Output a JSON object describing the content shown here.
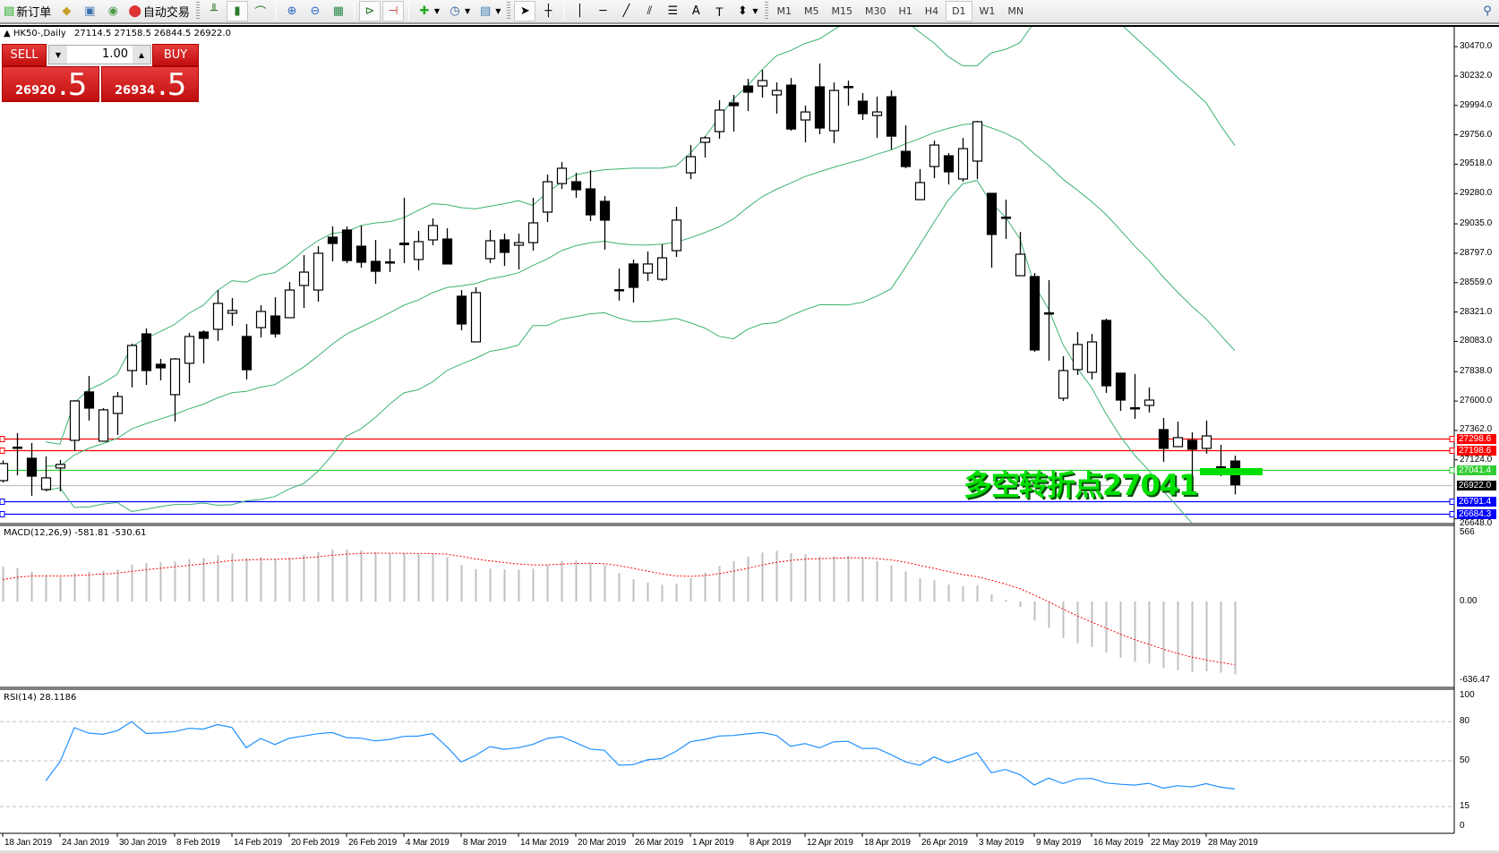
{
  "toolbar": {
    "new_order_label": "新订单",
    "auto_trading_label": "自动交易",
    "icons": [
      "new-order-icon",
      "market-watch-icon",
      "navigator-icon",
      "signals-icon",
      "auto-trading-icon",
      "bar-chart-icon",
      "candlestick-icon",
      "line-chart-icon",
      "zoom-in-icon",
      "zoom-out-icon",
      "tile-windows-icon",
      "autoscroll-icon",
      "chart-shift-icon",
      "indicators-icon",
      "periods-icon",
      "templates-icon",
      "cursor-icon",
      "crosshair-icon",
      "vertical-line-icon",
      "horizontal-line-icon",
      "trendline-icon",
      "equidistant-channel-icon",
      "fibonacci-icon",
      "text-icon",
      "text-label-icon",
      "arrows-icon",
      "search-icon"
    ],
    "timeframes": [
      "M1",
      "M5",
      "M15",
      "M30",
      "H1",
      "H4",
      "D1",
      "W1",
      "MN"
    ],
    "active_timeframe": "D1",
    "text_tool": "A"
  },
  "header": {
    "symbol": "HK50-,Daily",
    "ohlc": "27114.5 27158.5 26844.5 26922.0"
  },
  "trade_panel": {
    "sell_label": "SELL",
    "buy_label": "BUY",
    "lot": "1.00",
    "sell_price_main": "26920",
    "sell_price_frac": ".5",
    "buy_price_main": "26934",
    "buy_price_frac": ".5"
  },
  "annotation": {
    "text": "多空转折点27041",
    "color": "#00e000"
  },
  "chart_data": {
    "type": "candlestick",
    "y_axis_ticks": [
      "30470.0",
      "30232.0",
      "29994.0",
      "29756.0",
      "29518.0",
      "29280.0",
      "29035.0",
      "28797.0",
      "28559.0",
      "28321.0",
      "28083.0",
      "27838.0",
      "27600.0",
      "27362.0",
      "27124.0",
      "26648.0"
    ],
    "ylim": [
      26615,
      30630
    ],
    "ohlc": [
      [
        26956,
        27120,
        26940,
        27094
      ],
      [
        27224,
        27340,
        26999,
        27224
      ],
      [
        27137,
        27261,
        26833,
        26992
      ],
      [
        26884,
        27152,
        26869,
        26978
      ],
      [
        27058,
        27123,
        26869,
        27087
      ],
      [
        27282,
        27608,
        27195,
        27601
      ],
      [
        27674,
        27804,
        27442,
        27543
      ],
      [
        27275,
        27543,
        27275,
        27529
      ],
      [
        27500,
        27674,
        27326,
        27637
      ],
      [
        27847,
        28065,
        27710,
        28050
      ],
      [
        28144,
        28188,
        27731,
        27847
      ],
      [
        27898,
        27942,
        27768,
        27869
      ],
      [
        27652,
        27948,
        27434,
        27941
      ],
      [
        27906,
        28152,
        27746,
        28123
      ],
      [
        28159,
        28173,
        27905,
        28108
      ],
      [
        28181,
        28499,
        28087,
        28391
      ],
      [
        28311,
        28434,
        28210,
        28333
      ],
      [
        28123,
        28224,
        27775,
        27854
      ],
      [
        28195,
        28376,
        28115,
        28326
      ],
      [
        28289,
        28441,
        28115,
        28144
      ],
      [
        28275,
        28564,
        28275,
        28499
      ],
      [
        28536,
        28782,
        28354,
        28644
      ],
      [
        28499,
        28854,
        28405,
        28797
      ],
      [
        28927,
        29014,
        28731,
        28876
      ],
      [
        28985,
        29014,
        28717,
        28738
      ],
      [
        28854,
        29021,
        28680,
        28724
      ],
      [
        28731,
        28905,
        28550,
        28651
      ],
      [
        28724,
        28833,
        28644,
        28724
      ],
      [
        28862,
        29246,
        28717,
        28876
      ],
      [
        28746,
        28978,
        28659,
        28891
      ],
      [
        28905,
        29079,
        28862,
        29021
      ],
      [
        28912,
        28999,
        28710,
        28710
      ],
      [
        28449,
        28499,
        28173,
        28224
      ],
      [
        28079,
        28521,
        28079,
        28478
      ],
      [
        28753,
        28985,
        28717,
        28898
      ],
      [
        28905,
        28956,
        28695,
        28804
      ],
      [
        28862,
        28956,
        28666,
        28883
      ],
      [
        28883,
        29246,
        28818,
        29043
      ],
      [
        29130,
        29434,
        29050,
        29376
      ],
      [
        29361,
        29535,
        29318,
        29485
      ],
      [
        29376,
        29448,
        29246,
        29311
      ],
      [
        29318,
        29470,
        29057,
        29108
      ],
      [
        29217,
        29260,
        28826,
        29065
      ],
      [
        28499,
        28673,
        28413,
        28499
      ],
      [
        28710,
        28746,
        28398,
        28521
      ],
      [
        28637,
        28811,
        28572,
        28710
      ],
      [
        28586,
        28869,
        28572,
        28760
      ],
      [
        28818,
        29173,
        28767,
        29065
      ],
      [
        29448,
        29673,
        29398,
        29579
      ],
      [
        29695,
        29745,
        29572,
        29731
      ],
      [
        29782,
        30036,
        29724,
        29956
      ],
      [
        30014,
        30079,
        29782,
        29992
      ],
      [
        30151,
        30209,
        29948,
        30101
      ],
      [
        30151,
        30282,
        30057,
        30195
      ],
      [
        30079,
        30180,
        29927,
        30115
      ],
      [
        30158,
        30216,
        29789,
        29803
      ],
      [
        29876,
        29992,
        29695,
        29941
      ],
      [
        30144,
        30333,
        29760,
        29811
      ],
      [
        29789,
        30180,
        29688,
        30115
      ],
      [
        30144,
        30195,
        29992,
        30144
      ],
      [
        30028,
        30094,
        29876,
        29927
      ],
      [
        29912,
        30065,
        29731,
        29941
      ],
      [
        30064,
        30115,
        29637,
        29745
      ],
      [
        29622,
        29832,
        29485,
        29499
      ],
      [
        29231,
        29478,
        29231,
        29369
      ],
      [
        29499,
        29709,
        29405,
        29673
      ],
      [
        29586,
        29608,
        29354,
        29456
      ],
      [
        29398,
        29731,
        29376,
        29644
      ],
      [
        29543,
        29869,
        29398,
        29862
      ],
      [
        29282,
        29282,
        28680,
        28949
      ],
      [
        29086,
        29231,
        28913,
        29086
      ],
      [
        28615,
        28970,
        28615,
        28789
      ],
      [
        28608,
        28637,
        27999,
        28014
      ],
      [
        28311,
        28579,
        27927,
        28311
      ],
      [
        27623,
        27963,
        27601,
        27847
      ],
      [
        27855,
        28159,
        27811,
        28058
      ],
      [
        27833,
        28144,
        27775,
        28079
      ],
      [
        28253,
        28268,
        27666,
        27724
      ],
      [
        27826,
        27826,
        27521,
        27608
      ],
      [
        27543,
        27818,
        27456,
        27543
      ],
      [
        27565,
        27710,
        27507,
        27608
      ],
      [
        27369,
        27463,
        27108,
        27217
      ],
      [
        27231,
        27434,
        27231,
        27304
      ],
      [
        27282,
        27347,
        26978,
        27210
      ],
      [
        27217,
        27442,
        27174,
        27318
      ],
      [
        27065,
        27246,
        26992,
        27065
      ],
      [
        27114.5,
        27158.5,
        26844.5,
        26922.0
      ]
    ],
    "x_tick_labels": [
      {
        "bar": 0,
        "label": "18 Jan 2019"
      },
      {
        "bar": 4,
        "label": "24 Jan 2019"
      },
      {
        "bar": 8,
        "label": "30 Jan 2019"
      },
      {
        "bar": 12,
        "label": "8 Feb 2019"
      },
      {
        "bar": 16,
        "label": "14 Feb 2019"
      },
      {
        "bar": 20,
        "label": "20 Feb 2019"
      },
      {
        "bar": 24,
        "label": "26 Feb 2019"
      },
      {
        "bar": 28,
        "label": "4 Mar 2019"
      },
      {
        "bar": 32,
        "label": "8 Mar 2019"
      },
      {
        "bar": 36,
        "label": "14 Mar 2019"
      },
      {
        "bar": 40,
        "label": "20 Mar 2019"
      },
      {
        "bar": 44,
        "label": "26 Mar 2019"
      },
      {
        "bar": 48,
        "label": "1 Apr 2019"
      },
      {
        "bar": 52,
        "label": "8 Apr 2019"
      },
      {
        "bar": 56,
        "label": "12 Apr 2019"
      },
      {
        "bar": 60,
        "label": "18 Apr 2019"
      },
      {
        "bar": 64,
        "label": "26 Apr 2019"
      },
      {
        "bar": 68,
        "label": "3 May 2019"
      },
      {
        "bar": 72,
        "label": "9 May 2019"
      },
      {
        "bar": 76,
        "label": "16 May 2019"
      },
      {
        "bar": 80,
        "label": "22 May 2019"
      },
      {
        "bar": 84,
        "label": "28 May 2019"
      }
    ],
    "horizontal_lines": [
      {
        "price": 27298.6,
        "label": "27298.6",
        "color": "#ff0000"
      },
      {
        "price": 27198.6,
        "label": "27198.6",
        "color": "#ff0000"
      },
      {
        "price": 27041.4,
        "label": "27041.4",
        "color": "#32cd32"
      },
      {
        "price": 26922.0,
        "label": "26922.0",
        "color": "#000000",
        "line_color": "#c0c0c0"
      },
      {
        "price": 26791.4,
        "label": "26791.4",
        "color": "#0000ff"
      },
      {
        "price": 26684.3,
        "label": "26684.3",
        "color": "#0000ff"
      }
    ],
    "bollinger": {
      "period": 20,
      "deviation": 2,
      "color": "#3cb371"
    },
    "macd": {
      "title": "MACD(12,26,9) -581.81 -530.61",
      "ticks": [
        "566",
        "0.00",
        "-636.47"
      ],
      "ylim": [
        -636.47,
        566
      ],
      "histogram_color": "#c0c0c0",
      "signal_color": "#ff0000"
    },
    "rsi": {
      "title": "RSI(14) 28.1186",
      "ticks": [
        "100",
        "80",
        "50",
        "15",
        "0"
      ],
      "levels": [
        80,
        50,
        15
      ],
      "ylim": [
        0,
        100
      ],
      "color": "#1e90ff"
    }
  }
}
